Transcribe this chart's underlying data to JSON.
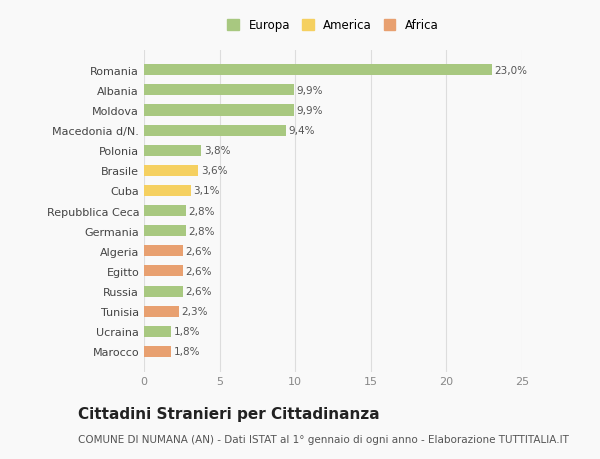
{
  "categories": [
    "Marocco",
    "Ucraina",
    "Tunisia",
    "Russia",
    "Egitto",
    "Algeria",
    "Germania",
    "Repubblica Ceca",
    "Cuba",
    "Brasile",
    "Polonia",
    "Macedonia d/N.",
    "Moldova",
    "Albania",
    "Romania"
  ],
  "values": [
    1.8,
    1.8,
    2.3,
    2.6,
    2.6,
    2.6,
    2.8,
    2.8,
    3.1,
    3.6,
    3.8,
    9.4,
    9.9,
    9.9,
    23.0
  ],
  "labels": [
    "1,8%",
    "1,8%",
    "2,3%",
    "2,6%",
    "2,6%",
    "2,6%",
    "2,8%",
    "2,8%",
    "3,1%",
    "3,6%",
    "3,8%",
    "9,4%",
    "9,9%",
    "9,9%",
    "23,0%"
  ],
  "continents": [
    "Africa",
    "Europa",
    "Africa",
    "Europa",
    "Africa",
    "Africa",
    "Europa",
    "Europa",
    "America",
    "America",
    "Europa",
    "Europa",
    "Europa",
    "Europa",
    "Europa"
  ],
  "colors": {
    "Europa": "#a8c880",
    "America": "#f5d060",
    "Africa": "#e8a070"
  },
  "xlim": [
    0,
    25
  ],
  "xticks": [
    0,
    5,
    10,
    15,
    20,
    25
  ],
  "title": "Cittadini Stranieri per Cittadinanza",
  "subtitle": "COMUNE DI NUMANA (AN) - Dati ISTAT al 1° gennaio di ogni anno - Elaborazione TUTTITALIA.IT",
  "bg_color": "#f9f9f9",
  "grid_color": "#dddddd",
  "label_fontsize": 7.5,
  "tick_fontsize": 8,
  "ylabel_fontsize": 8,
  "title_fontsize": 11,
  "subtitle_fontsize": 7.5,
  "bar_height": 0.55
}
